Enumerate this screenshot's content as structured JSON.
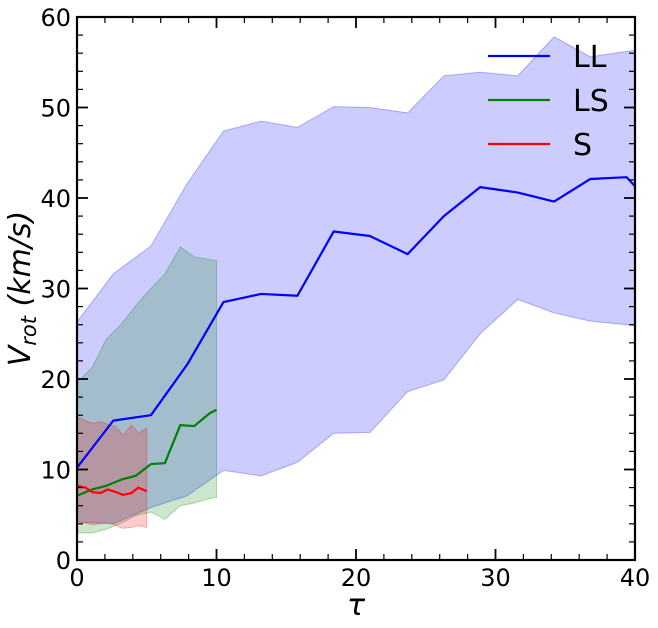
{
  "chart_data": {
    "type": "line",
    "xlabel": "τ",
    "ylabel": "V",
    "ylabel_sub": "rot",
    "ylabel_unit": " (km/s)",
    "xlim": [
      0,
      40
    ],
    "ylim": [
      0,
      60
    ],
    "x_ticks": [
      0,
      10,
      20,
      30,
      40
    ],
    "y_ticks": [
      0,
      10,
      20,
      30,
      40,
      50,
      60
    ],
    "x_tick_labels": [
      "0",
      "10",
      "20",
      "30",
      "40"
    ],
    "y_tick_labels": [
      "0",
      "10",
      "20",
      "30",
      "40",
      "50",
      "60"
    ],
    "grid": false,
    "legend_position": "top-right",
    "series": [
      {
        "name": "LL",
        "color": "#0000ff",
        "band_color": "#0000ff",
        "x": [
          0,
          2.6,
          5.3,
          7.9,
          10.5,
          13.2,
          15.8,
          18.4,
          21.0,
          23.7,
          26.3,
          28.9,
          31.6,
          34.2,
          36.8,
          39.4,
          40
        ],
        "values": [
          10.2,
          15.4,
          16.0,
          21.6,
          28.5,
          29.4,
          29.2,
          36.3,
          35.8,
          33.8,
          38.0,
          41.2,
          40.6,
          39.6,
          42.1,
          42.3,
          41.3
        ],
        "lower": [
          4.2,
          4.0,
          5.8,
          7.1,
          9.9,
          9.3,
          10.8,
          14.0,
          14.1,
          18.6,
          19.9,
          25.0,
          28.8,
          27.3,
          26.4,
          26.0,
          25.9
        ],
        "upper": [
          26.3,
          31.6,
          34.7,
          41.6,
          47.4,
          48.5,
          47.8,
          50.1,
          50.0,
          49.4,
          53.5,
          53.9,
          53.5,
          57.8,
          55.6,
          56.2,
          56.3
        ]
      },
      {
        "name": "LS",
        "color": "#008000",
        "band_color": "#008000",
        "x": [
          0,
          1.1,
          2.1,
          3.2,
          4.2,
          5.3,
          6.3,
          7.4,
          8.4,
          9.5,
          10
        ],
        "values": [
          7.1,
          7.8,
          8.2,
          8.9,
          9.3,
          10.6,
          10.7,
          14.9,
          14.8,
          16.2,
          16.6
        ],
        "lower": [
          3.0,
          3.0,
          3.4,
          4.1,
          4.9,
          5.3,
          4.5,
          6.0,
          6.3,
          6.8,
          6.9
        ],
        "upper": [
          19.6,
          21.3,
          24.4,
          26.1,
          28.1,
          30.0,
          31.6,
          34.6,
          33.5,
          33.2,
          33.1
        ]
      },
      {
        "name": "S",
        "color": "#ff0000",
        "band_color": "#ff0000",
        "x": [
          0,
          0.6,
          1.1,
          1.7,
          2.2,
          2.8,
          3.3,
          3.9,
          4.4,
          5.0
        ],
        "values": [
          8.2,
          8.0,
          7.5,
          7.4,
          7.8,
          7.5,
          7.2,
          7.4,
          8.0,
          7.6
        ],
        "lower": [
          4.3,
          4.1,
          3.9,
          4.0,
          4.2,
          3.8,
          3.5,
          3.6,
          3.8,
          3.6
        ],
        "upper": [
          15.8,
          15.4,
          15.1,
          15.3,
          15.0,
          14.7,
          13.8,
          14.9,
          14.0,
          14.6
        ]
      }
    ]
  }
}
